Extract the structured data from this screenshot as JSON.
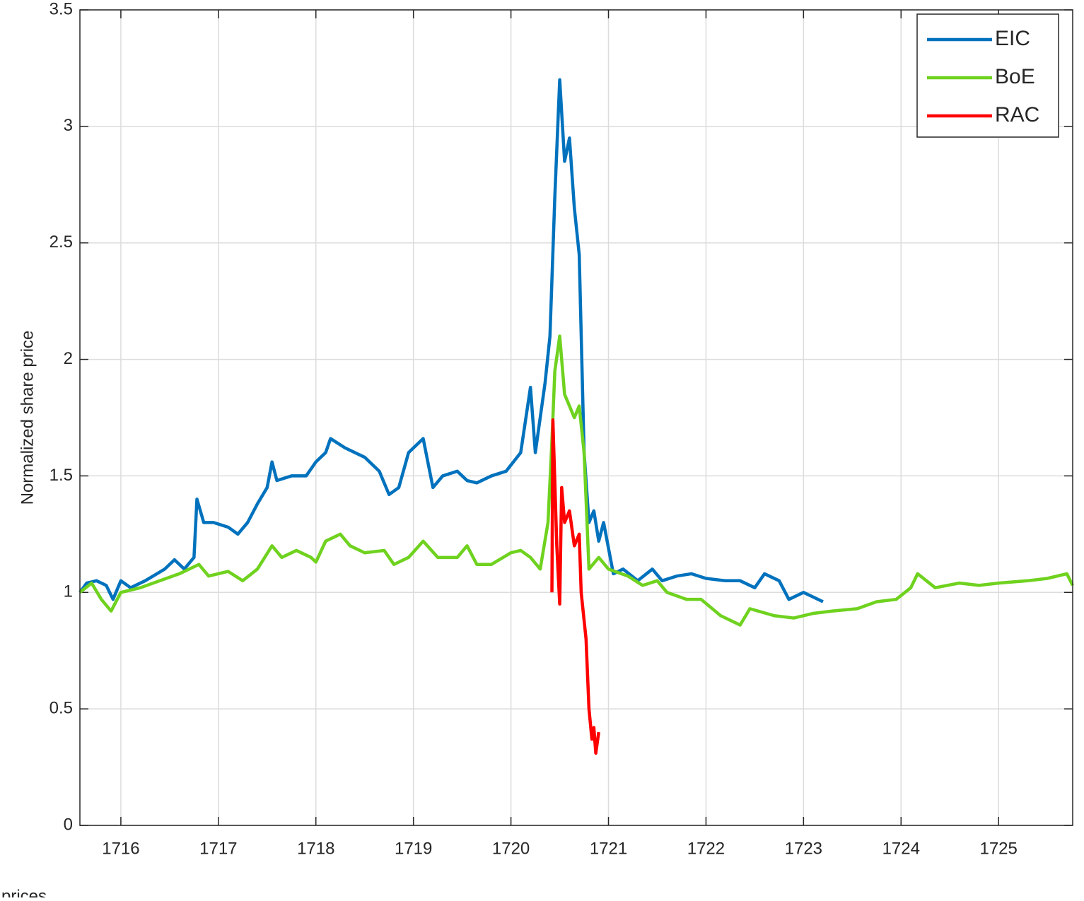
{
  "chart_data": {
    "type": "line",
    "y_label": "Normalized share price",
    "caption": "prices",
    "xlim": [
      1715.58,
      1725.76
    ],
    "xticks": [
      1716,
      1717,
      1718,
      1719,
      1720,
      1721,
      1722,
      1723,
      1724,
      1725
    ],
    "ylim": [
      0,
      3.5
    ],
    "yticks": [
      0,
      0.5,
      1,
      1.5,
      2,
      2.5,
      3,
      3.5
    ],
    "grid": true,
    "legend": "northeast",
    "series": [
      {
        "name": "EIC",
        "color": "#0072bd",
        "x": [
          1715.58,
          1715.65,
          1715.75,
          1715.85,
          1715.92,
          1716.0,
          1716.1,
          1716.25,
          1716.45,
          1716.55,
          1716.65,
          1716.75,
          1716.78,
          1716.85,
          1716.95,
          1717.1,
          1717.2,
          1717.3,
          1717.4,
          1717.5,
          1717.55,
          1717.6,
          1717.75,
          1717.9,
          1718.0,
          1718.1,
          1718.15,
          1718.3,
          1718.5,
          1718.65,
          1718.75,
          1718.85,
          1718.95,
          1719.1,
          1719.2,
          1719.3,
          1719.45,
          1719.55,
          1719.65,
          1719.8,
          1719.95,
          1720.1,
          1720.2,
          1720.25,
          1720.35,
          1720.4,
          1720.45,
          1720.5,
          1720.55,
          1720.6,
          1720.65,
          1720.7,
          1720.75,
          1720.8,
          1720.85,
          1720.9,
          1720.95,
          1721.05,
          1721.15,
          1721.3,
          1721.45,
          1721.55,
          1721.7,
          1721.85,
          1722.0,
          1722.2,
          1722.35,
          1722.5,
          1722.6,
          1722.75,
          1722.85,
          1723.0,
          1723.2
        ],
        "values": [
          1.0,
          1.04,
          1.05,
          1.03,
          0.97,
          1.05,
          1.02,
          1.05,
          1.1,
          1.14,
          1.1,
          1.15,
          1.4,
          1.3,
          1.3,
          1.28,
          1.25,
          1.3,
          1.38,
          1.45,
          1.56,
          1.48,
          1.5,
          1.5,
          1.56,
          1.6,
          1.66,
          1.62,
          1.58,
          1.52,
          1.42,
          1.45,
          1.6,
          1.66,
          1.45,
          1.5,
          1.52,
          1.48,
          1.47,
          1.5,
          1.52,
          1.6,
          1.88,
          1.6,
          1.9,
          2.1,
          2.7,
          3.2,
          2.85,
          2.95,
          2.65,
          2.45,
          1.6,
          1.3,
          1.35,
          1.22,
          1.3,
          1.08,
          1.1,
          1.05,
          1.1,
          1.05,
          1.07,
          1.08,
          1.06,
          1.05,
          1.05,
          1.02,
          1.08,
          1.05,
          0.97,
          1.0,
          0.96
        ]
      },
      {
        "name": "BoE",
        "color": "#6fd21f",
        "x": [
          1715.58,
          1715.7,
          1715.8,
          1715.9,
          1716.0,
          1716.2,
          1716.4,
          1716.6,
          1716.8,
          1716.9,
          1717.1,
          1717.25,
          1717.4,
          1717.55,
          1717.65,
          1717.8,
          1717.95,
          1718.0,
          1718.1,
          1718.25,
          1718.35,
          1718.5,
          1718.7,
          1718.8,
          1718.95,
          1719.1,
          1719.25,
          1719.45,
          1719.55,
          1719.65,
          1719.8,
          1720.0,
          1720.1,
          1720.2,
          1720.3,
          1720.38,
          1720.42,
          1720.45,
          1720.5,
          1720.55,
          1720.65,
          1720.7,
          1720.75,
          1720.8,
          1720.9,
          1721.0,
          1721.2,
          1721.35,
          1721.5,
          1721.6,
          1721.8,
          1721.95,
          1722.15,
          1722.35,
          1722.45,
          1722.7,
          1722.9,
          1723.1,
          1723.3,
          1723.55,
          1723.75,
          1723.95,
          1724.1,
          1724.17,
          1724.35,
          1724.6,
          1724.8,
          1725.0,
          1725.3,
          1725.5,
          1725.7,
          1725.76
        ],
        "values": [
          1.0,
          1.04,
          0.97,
          0.92,
          1.0,
          1.02,
          1.05,
          1.08,
          1.12,
          1.07,
          1.09,
          1.05,
          1.1,
          1.2,
          1.15,
          1.18,
          1.15,
          1.13,
          1.22,
          1.25,
          1.2,
          1.17,
          1.18,
          1.12,
          1.15,
          1.22,
          1.15,
          1.15,
          1.2,
          1.12,
          1.12,
          1.17,
          1.18,
          1.15,
          1.1,
          1.3,
          1.65,
          1.95,
          2.1,
          1.85,
          1.75,
          1.8,
          1.6,
          1.1,
          1.15,
          1.1,
          1.07,
          1.03,
          1.05,
          1.0,
          0.97,
          0.97,
          0.9,
          0.86,
          0.93,
          0.9,
          0.89,
          0.91,
          0.92,
          0.93,
          0.96,
          0.97,
          1.02,
          1.08,
          1.02,
          1.04,
          1.03,
          1.04,
          1.05,
          1.06,
          1.08,
          1.03
        ]
      },
      {
        "name": "RAC",
        "color": "#ff0000",
        "x": [
          1720.42,
          1720.43,
          1720.47,
          1720.5,
          1720.52,
          1720.55,
          1720.6,
          1720.65,
          1720.7,
          1720.72,
          1720.77,
          1720.8,
          1720.83,
          1720.85,
          1720.87,
          1720.9
        ],
        "values": [
          1.0,
          1.74,
          1.2,
          0.95,
          1.45,
          1.3,
          1.35,
          1.2,
          1.25,
          1.0,
          0.8,
          0.5,
          0.37,
          0.42,
          0.31,
          0.4
        ]
      }
    ]
  }
}
